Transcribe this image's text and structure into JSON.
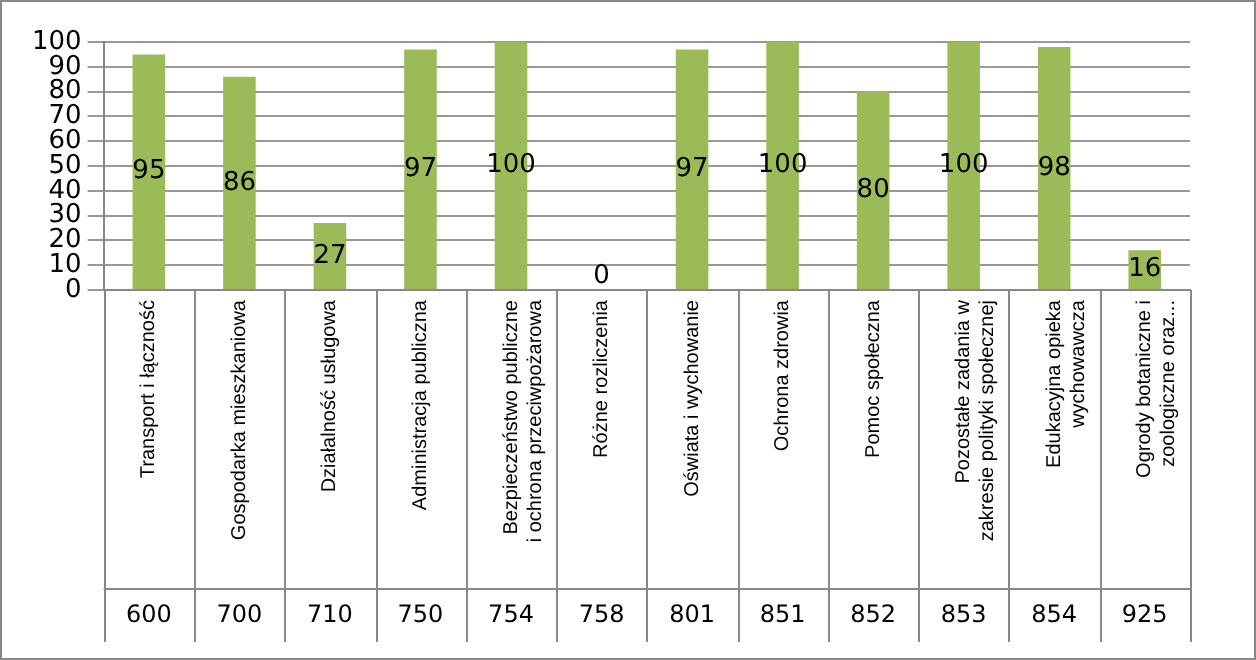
{
  "chart_data": {
    "type": "bar",
    "categories": [
      "Transport i łączność",
      "Gospodarka mieszkaniowa",
      "Działalność usługowa",
      "Administracja publiczna",
      "Bezpieczeństwo publiczne i ochrona przeciwpożarowa",
      "Różne rozliczenia",
      "Oświata i wychowanie",
      "Ochrona zdrowia",
      "Pomoc społeczna",
      "Pozostałe zadania w zakresie polityki społecznej",
      "Edukacyjna opieka wychowawcza",
      "Ogrody botaniczne i zoologiczne oraz..."
    ],
    "values": [
      95,
      86,
      27,
      97,
      100,
      0,
      97,
      100,
      80,
      100,
      98,
      16
    ],
    "color": "#9bbb59",
    "annotations": [
      "600",
      "700",
      "710",
      "750",
      "754",
      "758",
      "801",
      "851",
      "852",
      "853",
      "854",
      "925"
    ],
    "ylim": [
      0,
      100
    ],
    "yticks": [
      0,
      10,
      20,
      30,
      40,
      50,
      60,
      70,
      80,
      90,
      100
    ],
    "grid": "y",
    "data_labels": true
  }
}
